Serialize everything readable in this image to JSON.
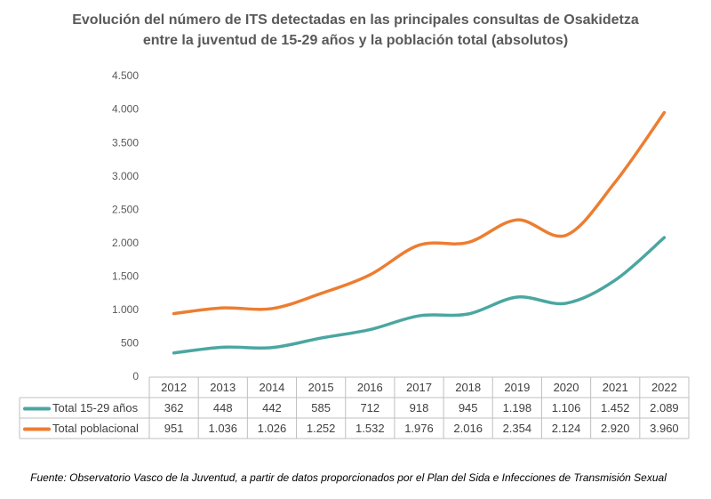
{
  "chart_data": {
    "type": "line",
    "title": [
      "Evolución del número de ITS detectadas en las principales consultas de Osakidetza",
      "entre la juventud de 15-29 años y la población total (absolutos)"
    ],
    "categories": [
      "2012",
      "2013",
      "2014",
      "2015",
      "2016",
      "2017",
      "2018",
      "2019",
      "2020",
      "2021",
      "2022"
    ],
    "series": [
      {
        "name": "Total 15-29 años",
        "color": "#4ba6a1",
        "values": [
          362,
          448,
          442,
          585,
          712,
          918,
          945,
          1198,
          1106,
          1452,
          2089
        ],
        "value_labels": [
          "362",
          "448",
          "442",
          "585",
          "712",
          "918",
          "945",
          "1.198",
          "1.106",
          "1.452",
          "2.089"
        ]
      },
      {
        "name": "Total poblacional",
        "color": "#ed7d31",
        "values": [
          951,
          1036,
          1026,
          1252,
          1532,
          1976,
          2016,
          2354,
          2124,
          2920,
          3960
        ],
        "value_labels": [
          "951",
          "1.036",
          "1.026",
          "1.252",
          "1.532",
          "1.976",
          "2.016",
          "2.354",
          "2.124",
          "2.920",
          "3.960"
        ]
      }
    ],
    "ylim": [
      0,
      4500
    ],
    "yticks": [
      0,
      500,
      {
        "value": 1000,
        "label": "1.000"
      },
      {
        "value": 1500,
        "label": "1.500"
      },
      {
        "value": 2000,
        "label": "2.000"
      },
      {
        "value": 2500,
        "label": "2.500"
      },
      {
        "value": 3000,
        "label": "3.000"
      },
      {
        "value": 3500,
        "label": "3.500"
      },
      {
        "value": 4000,
        "label": "4.000"
      },
      {
        "value": 4500,
        "label": "4.500"
      }
    ],
    "grid": false,
    "source": "Fuente: Observatorio Vasco de la Juventud, a partir de datos proporcionados por el Plan del Sida e Infecciones de Transmisión Sexual"
  }
}
